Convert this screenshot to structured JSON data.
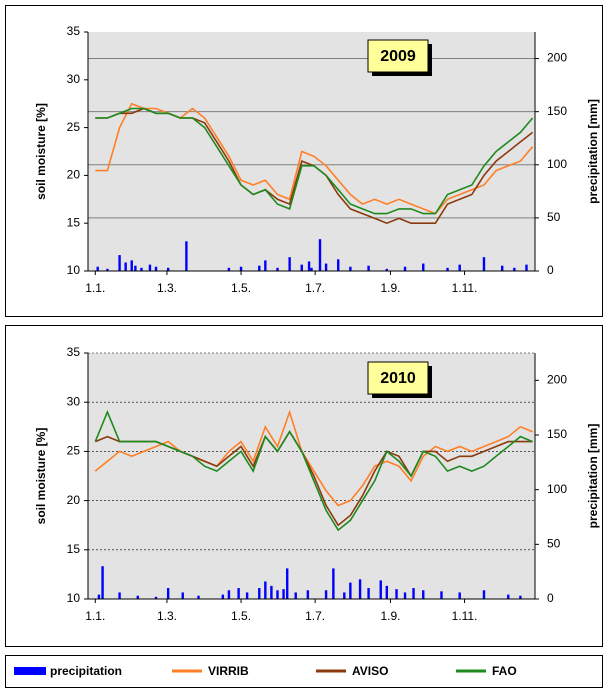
{
  "chart_data": [
    {
      "type": "line",
      "label": "2009",
      "y_label": "soil moisture [%]",
      "y2_label": "precipitation [mm]",
      "xlim": [
        -6,
        362
      ],
      "xticks": [
        {
          "value": 0,
          "label": "1.1."
        },
        {
          "value": 59,
          "label": "1.3."
        },
        {
          "value": 120,
          "label": "1.5."
        },
        {
          "value": 181,
          "label": "1.7."
        },
        {
          "value": 243,
          "label": "1.9."
        },
        {
          "value": 304,
          "label": "1.11."
        }
      ],
      "ylim": [
        10,
        35
      ],
      "yticks": [
        10,
        15,
        20,
        25,
        30,
        35
      ],
      "y2lim": [
        0,
        225
      ],
      "y2ticks": [
        0,
        50,
        100,
        150,
        200
      ],
      "grid": "y2",
      "legend": "bottom",
      "x": [
        0,
        10,
        20,
        30,
        40,
        50,
        60,
        70,
        80,
        90,
        100,
        110,
        120,
        130,
        140,
        150,
        160,
        170,
        180,
        190,
        200,
        210,
        220,
        230,
        240,
        250,
        260,
        270,
        280,
        290,
        300,
        310,
        320,
        330,
        340,
        350,
        360
      ],
      "series": [
        {
          "name": "precipitation",
          "type": "bar",
          "axis": "y2",
          "color": "#0000ff",
          "x": [
            2,
            10,
            20,
            25,
            30,
            33,
            38,
            45,
            50,
            60,
            75,
            110,
            120,
            135,
            140,
            150,
            160,
            170,
            176,
            178,
            185,
            190,
            200,
            210,
            225,
            240,
            255,
            270,
            290,
            300,
            320,
            335,
            345,
            355
          ],
          "values": [
            4,
            2,
            15,
            8,
            10,
            5,
            3,
            6,
            4,
            3,
            28,
            3,
            4,
            5,
            10,
            3,
            13,
            6,
            9,
            3,
            30,
            7,
            11,
            4,
            5,
            2,
            4,
            7,
            3,
            6,
            13,
            5,
            3,
            6
          ]
        },
        {
          "name": "VIRRIB",
          "color": "#ff7f27",
          "values": [
            20.5,
            20.5,
            25,
            27.5,
            27,
            27,
            26.5,
            26,
            27,
            26,
            24,
            22,
            19.5,
            19,
            19.5,
            18,
            17.5,
            22.5,
            22,
            21,
            19.5,
            18,
            17,
            17.5,
            17,
            17.5,
            17,
            16.5,
            16,
            17.5,
            18,
            18.5,
            19,
            20.5,
            21,
            21.5,
            23
          ]
        },
        {
          "name": "AVISO",
          "color": "#8b3a0e",
          "values": [
            26,
            26,
            26.5,
            26.5,
            27,
            26.5,
            26.5,
            26,
            26,
            25.5,
            23.5,
            21.5,
            19,
            18,
            18.5,
            17.5,
            17,
            21.5,
            21,
            20,
            18,
            16.5,
            16,
            15.5,
            15,
            15.5,
            15,
            15,
            15,
            17,
            17.5,
            18,
            20,
            21.5,
            22.5,
            23.5,
            24.5
          ]
        },
        {
          "name": "FAO",
          "color": "#1e8a1e",
          "values": [
            26,
            26,
            26.5,
            27,
            27,
            26.5,
            26.5,
            26,
            26,
            25,
            23,
            21,
            19,
            18,
            18.5,
            17,
            16.5,
            21,
            21,
            20,
            18.5,
            17,
            16.5,
            16,
            16,
            16.5,
            16.5,
            16,
            16,
            18,
            18.5,
            19,
            21,
            22.5,
            23.5,
            24.5,
            26
          ]
        }
      ]
    },
    {
      "type": "line",
      "label": "2010",
      "y_label": "soil moisture [%]",
      "y2_label": "precipitation [mm]",
      "xlim": [
        -6,
        362
      ],
      "xticks": [
        {
          "value": 0,
          "label": "1.1."
        },
        {
          "value": 59,
          "label": "1.3."
        },
        {
          "value": 120,
          "label": "1.5."
        },
        {
          "value": 181,
          "label": "1.7."
        },
        {
          "value": 243,
          "label": "1.9."
        },
        {
          "value": 304,
          "label": "1.11."
        }
      ],
      "ylim": [
        10,
        35
      ],
      "yticks": [
        10,
        15,
        20,
        25,
        30,
        35
      ],
      "y2lim": [
        0,
        225
      ],
      "y2ticks": [
        0,
        50,
        100,
        150,
        200
      ],
      "grid": "y",
      "x": [
        0,
        10,
        20,
        30,
        40,
        50,
        60,
        70,
        80,
        90,
        100,
        110,
        120,
        130,
        140,
        150,
        160,
        170,
        180,
        190,
        200,
        210,
        220,
        230,
        240,
        250,
        260,
        270,
        280,
        290,
        300,
        310,
        320,
        330,
        340,
        350,
        360
      ],
      "series": [
        {
          "type": "bar",
          "axis": "y2",
          "color": "#0000ff",
          "x": [
            3,
            6,
            20,
            35,
            50,
            60,
            72,
            85,
            105,
            110,
            118,
            125,
            135,
            140,
            145,
            150,
            155,
            158,
            165,
            175,
            190,
            196,
            205,
            210,
            218,
            225,
            235,
            240,
            248,
            255,
            262,
            270,
            285,
            300,
            320,
            340,
            350
          ],
          "values": [
            4,
            30,
            6,
            3,
            2,
            10,
            6,
            3,
            4,
            8,
            10,
            6,
            10,
            16,
            12,
            8,
            9,
            28,
            6,
            8,
            8,
            28,
            6,
            15,
            18,
            10,
            17,
            12,
            9,
            6,
            10,
            8,
            7,
            6,
            8,
            4,
            3
          ]
        },
        {
          "color": "#ff7f27",
          "values": [
            23,
            24,
            25,
            24.5,
            25,
            25.5,
            26,
            25,
            24.5,
            24,
            23.5,
            25,
            26,
            24,
            27.5,
            25.5,
            29,
            25,
            23,
            21,
            19.5,
            20,
            21.5,
            23.5,
            24,
            23.5,
            22,
            24.5,
            25.5,
            25,
            25.5,
            25,
            25.5,
            26,
            26.5,
            27.5,
            27
          ]
        },
        {
          "color": "#8b3a0e",
          "values": [
            26,
            26.5,
            26,
            26,
            26,
            26,
            25.5,
            25,
            24.5,
            24,
            23.5,
            24.5,
            25.5,
            23.5,
            26.5,
            25,
            27,
            25,
            22.5,
            19.5,
            17.5,
            18.5,
            20.5,
            23,
            25,
            24.5,
            22.5,
            25,
            25,
            24,
            24.5,
            24.5,
            25,
            25.5,
            26,
            26,
            26
          ]
        },
        {
          "color": "#1e8a1e",
          "values": [
            26,
            29,
            26,
            26,
            26,
            26,
            25.5,
            25,
            24.5,
            23.5,
            23,
            24,
            25,
            23,
            26.5,
            25,
            27,
            25,
            22,
            19,
            17,
            18,
            20,
            22,
            25,
            24,
            22.5,
            25,
            24.5,
            23,
            23.5,
            23,
            23.5,
            24.5,
            25.5,
            26.5,
            26
          ]
        }
      ]
    }
  ]
}
